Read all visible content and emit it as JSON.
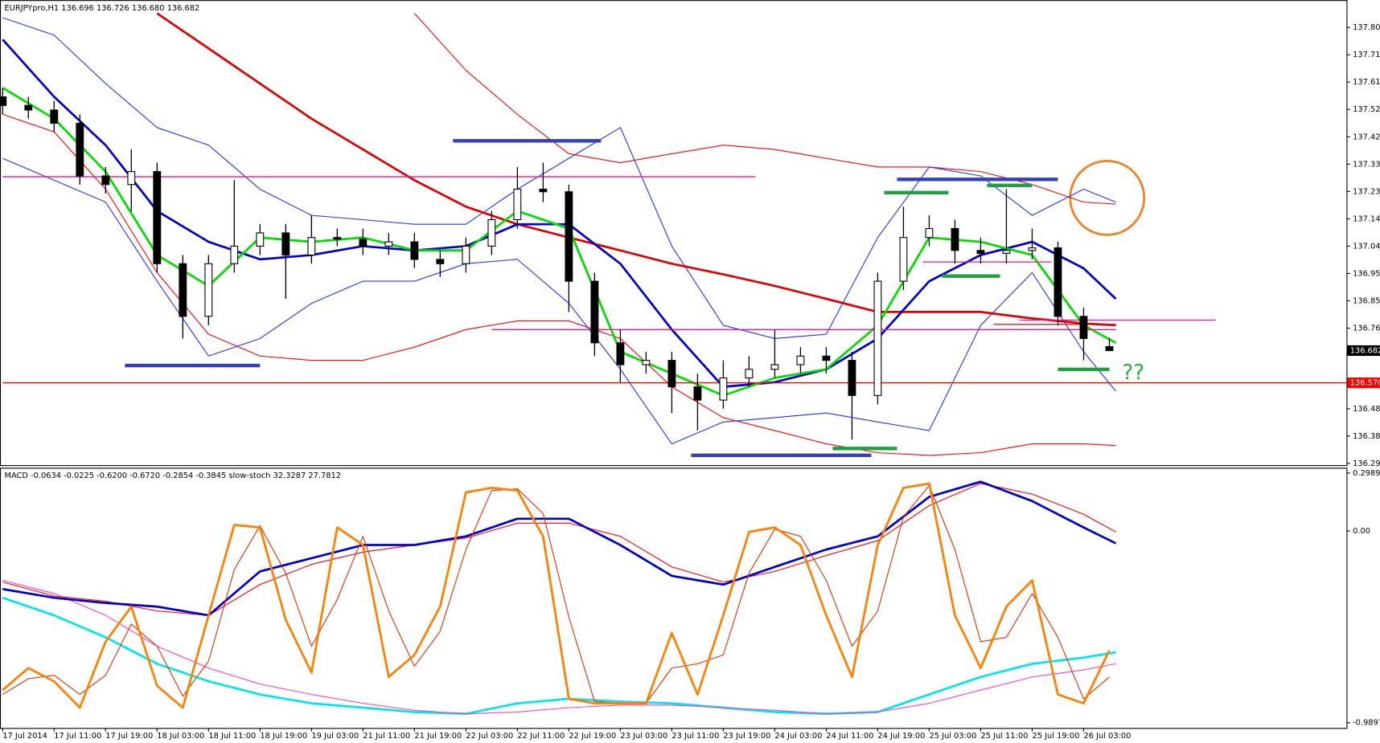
{
  "chart_data": [
    {
      "type": "candlestick",
      "legend_text": "EURJPYpro,H1  136.696 136.726 136.680 136.682",
      "annotation": "??",
      "xlim": [
        0,
        209
      ],
      "ylim": [
        136.284,
        137.9
      ],
      "yticks": [
        137.805,
        {
          "value": 137.71,
          "label": "137.710"
        },
        137.615,
        {
          "value": 137.52,
          "label": "137.520"
        },
        137.425,
        {
          "value": 137.33,
          "label": "137.330"
        },
        137.235,
        {
          "value": 137.14,
          "label": "137.140"
        },
        137.045,
        {
          "value": 136.95,
          "label": "136.950"
        },
        136.855,
        {
          "value": 136.76,
          "label": "136.760"
        },
        {
          "value": 136.48,
          "label": "136.480"
        },
        136.385,
        {
          "value": 136.29,
          "label": "136.290"
        }
      ],
      "price_labels": [
        {
          "value": 136.682,
          "label": "136.682",
          "color": "#000000"
        },
        {
          "value": 136.57,
          "label": "136.570",
          "color": "#ff0000"
        }
      ],
      "x": [
        0,
        4,
        8,
        12,
        16,
        20,
        24,
        28,
        32,
        36,
        40,
        44,
        48,
        52,
        56,
        60,
        64,
        68,
        72,
        76,
        80,
        84,
        88,
        92,
        96,
        100,
        104,
        108,
        112,
        116,
        120,
        124,
        128,
        132,
        136,
        140,
        144,
        148,
        152,
        156,
        160,
        164,
        168,
        172
      ],
      "open": [
        137.564,
        137.534,
        137.518,
        137.472,
        137.289,
        137.259,
        137.304,
        136.984,
        136.801,
        136.984,
        137.045,
        137.091,
        137.014,
        137.075,
        137.069,
        137.045,
        137.06,
        136.999,
        136.984,
        137.045,
        137.137,
        137.243,
        137.234,
        136.923,
        136.709,
        136.633,
        136.648,
        136.556,
        136.51,
        136.587,
        136.617,
        136.633,
        136.663,
        136.648,
        136.526,
        136.923,
        137.075,
        137.106,
        137.03,
        137.02,
        137.03,
        137.039,
        136.801,
        136.696
      ],
      "high": [
        137.595,
        137.564,
        137.549,
        137.503,
        137.32,
        137.381,
        137.335,
        137.014,
        137.014,
        137.274,
        137.121,
        137.121,
        137.152,
        137.106,
        137.106,
        137.091,
        137.091,
        137.03,
        137.075,
        137.167,
        137.32,
        137.335,
        137.259,
        136.953,
        136.755,
        136.678,
        136.678,
        136.602,
        136.648,
        136.663,
        136.755,
        136.694,
        136.694,
        136.678,
        136.953,
        137.182,
        137.152,
        137.137,
        137.075,
        137.243,
        137.106,
        137.06,
        136.831,
        136.726
      ],
      "low": [
        137.503,
        137.488,
        137.442,
        137.259,
        137.228,
        137.167,
        136.953,
        136.724,
        136.77,
        136.953,
        137.014,
        136.862,
        136.984,
        137.045,
        137.014,
        137.014,
        136.969,
        136.938,
        136.953,
        137.014,
        137.106,
        137.198,
        136.816,
        136.663,
        136.572,
        136.602,
        136.465,
        136.404,
        136.48,
        136.556,
        136.587,
        136.602,
        136.602,
        136.373,
        136.495,
        136.892,
        137.045,
        136.984,
        136.984,
        136.984,
        136.999,
        136.77,
        136.648,
        136.68
      ],
      "close": [
        137.534,
        137.518,
        137.472,
        137.289,
        137.259,
        137.304,
        136.984,
        136.801,
        136.984,
        137.045,
        137.091,
        137.014,
        137.075,
        137.069,
        137.045,
        137.06,
        136.999,
        136.984,
        137.045,
        137.137,
        137.243,
        137.234,
        136.923,
        136.709,
        136.633,
        136.648,
        136.556,
        136.51,
        136.587,
        136.617,
        136.633,
        136.663,
        136.648,
        136.526,
        136.923,
        137.075,
        137.106,
        137.03,
        137.02,
        137.03,
        137.039,
        136.801,
        136.724,
        136.682
      ],
      "indicator_x": [
        0,
        8,
        16,
        24,
        32,
        40,
        48,
        56,
        64,
        72,
        80,
        88,
        96,
        104,
        112,
        120,
        128,
        136,
        144,
        152,
        160,
        168,
        173
      ],
      "lines": [
        {
          "color": "#ff0000",
          "values": [
            null,
            null,
            null,
            null,
            null,
            null,
            null,
            null,
            137.854,
            137.656,
            137.503,
            137.366,
            137.335,
            137.366,
            137.396,
            137.381,
            137.35,
            137.32,
            137.32,
            137.304,
            137.259,
            137.198,
            137.191
          ]
        },
        {
          "color": "#ff0000",
          "values": [
            137.503,
            137.442,
            137.243,
            136.953,
            136.739,
            136.663,
            136.648,
            136.648,
            136.694,
            136.755,
            136.785,
            136.785,
            136.724,
            136.556,
            136.449,
            136.404,
            136.358,
            136.327,
            136.318,
            136.327,
            136.358,
            136.358,
            136.352
          ]
        },
        {
          "color": "#2030ff",
          "values": [
            137.839,
            137.778,
            137.61,
            137.457,
            137.396,
            137.243,
            137.152,
            137.137,
            137.121,
            137.121,
            137.243,
            137.35,
            137.457,
            137.045,
            136.77,
            136.724,
            136.739,
            137.075,
            137.32,
            137.289,
            137.152,
            137.243,
            137.198
          ]
        },
        {
          "color": "#2030ff",
          "values": [
            137.35,
            137.274,
            137.198,
            136.923,
            136.663,
            136.724,
            136.846,
            136.923,
            136.923,
            136.984,
            136.999,
            136.846,
            136.617,
            136.358,
            136.434,
            136.449,
            136.465,
            136.434,
            136.404,
            136.77,
            136.953,
            136.678,
            136.541
          ]
        },
        {
          "color": "#e00000",
          "values": [
            null,
            null,
            null,
            137.854,
            137.732,
            137.61,
            137.488,
            137.381,
            137.274,
            137.182,
            137.121,
            137.075,
            137.03,
            136.984,
            136.947,
            136.907,
            136.862,
            136.816,
            136.816,
            136.816,
            136.794,
            136.776,
            136.77
          ]
        },
        {
          "color": "#0000cc",
          "values": [
            137.763,
            137.564,
            137.396,
            137.167,
            137.06,
            136.999,
            137.014,
            137.045,
            137.03,
            137.045,
            137.121,
            137.121,
            136.984,
            136.755,
            136.556,
            136.572,
            136.617,
            136.724,
            136.923,
            137.014,
            137.06,
            136.968,
            136.862
          ]
        },
        {
          "color": "#00dd00",
          "values": [
            137.595,
            137.488,
            137.304,
            137.014,
            136.907,
            137.075,
            137.06,
            137.075,
            137.03,
            137.03,
            137.167,
            137.106,
            136.678,
            136.602,
            136.526,
            136.587,
            136.617,
            136.77,
            137.075,
            137.06,
            137.014,
            136.77,
            136.709
          ]
        }
      ],
      "levels": [
        {
          "price": 137.286,
          "from": 0,
          "to": 117,
          "color": "#f0148c"
        },
        {
          "price": 136.755,
          "from": 76,
          "to": 173,
          "color": "#f0148c"
        },
        {
          "price": 136.99,
          "from": 143,
          "to": 163,
          "color": "#f0148c"
        },
        {
          "price": 136.788,
          "from": 158,
          "to": 188.5,
          "color": "#f0148c"
        },
        {
          "price": 136.57,
          "from": 0,
          "to": 209,
          "color": "#ff0000"
        },
        {
          "price": 136.773,
          "from": 154,
          "to": 173,
          "color": "#e00000"
        },
        {
          "price": 136.63,
          "from": 19,
          "to": 40,
          "color": "#3040c0"
        },
        {
          "price": 137.411,
          "from": 70,
          "to": 93,
          "color": "#3040c0"
        },
        {
          "price": 137.277,
          "from": 139,
          "to": 164,
          "color": "#3040c0"
        },
        {
          "price": 136.318,
          "from": 107,
          "to": 135,
          "color": "#3040c0"
        },
        {
          "price": 137.231,
          "from": 137,
          "to": 147,
          "color": "#20a040"
        },
        {
          "price": 137.256,
          "from": 153,
          "to": 160,
          "color": "#20a040"
        },
        {
          "price": 136.941,
          "from": 146,
          "to": 155,
          "color": "#20a040"
        },
        {
          "price": 136.617,
          "from": 164,
          "to": 172,
          "color": "#20a040"
        },
        {
          "price": 136.342,
          "from": 129,
          "to": 139,
          "color": "#20a040"
        }
      ]
    },
    {
      "type": "line",
      "legend_text": "MACD -0.0634 -0.0225 -0.6200 -0.6720 -0.2854 -0.3845 slow-stoch 32.3287 27.7812",
      "xlim": [
        0,
        209
      ],
      "ylim": [
        -1.017,
        0.326
      ],
      "yticks": [
        0.2989,
        {
          "value": 0,
          "label": "0.00"
        },
        -0.9897
      ],
      "xticks": [
        {
          "value": 0,
          "label": "17 Jul 2014"
        },
        {
          "value": 8,
          "label": "17 Jul 11:00"
        },
        {
          "value": 16,
          "label": "17 Jul 19:00"
        },
        {
          "value": 24,
          "label": "18 Jul 03:00"
        },
        {
          "value": 32,
          "label": "18 Jul 11:00"
        },
        {
          "value": 40,
          "label": "18 Jul 19:00"
        },
        {
          "value": 48,
          "label": "19 Jul 03:00"
        },
        {
          "value": 56,
          "label": "21 Jul 11:00"
        },
        {
          "value": 64,
          "label": "21 Jul 19:00"
        },
        {
          "value": 72,
          "label": "22 Jul 03:00"
        },
        {
          "value": 80,
          "label": "22 Jul 11:00"
        },
        {
          "value": 88,
          "label": "22 Jul 19:00"
        },
        {
          "value": 96,
          "label": "23 Jul 03:00"
        },
        {
          "value": 104,
          "label": "23 Jul 11:00"
        },
        {
          "value": 112,
          "label": "23 Jul 19:00"
        },
        {
          "value": 120,
          "label": "24 Jul 03:00"
        },
        {
          "value": 128,
          "label": "24 Jul 11:00"
        },
        {
          "value": 136,
          "label": "24 Jul 19:00"
        },
        {
          "value": 144,
          "label": "25 Jul 03:00"
        },
        {
          "value": 152,
          "label": "25 Jul 11:00"
        },
        {
          "value": 160,
          "label": "25 Jul 19:00"
        },
        {
          "value": 168,
          "label": "26 Jul 03:00"
        }
      ],
      "indicator_x": [
        0,
        8,
        16,
        24,
        32,
        40,
        48,
        56,
        64,
        72,
        80,
        88,
        96,
        104,
        112,
        120,
        128,
        136,
        144,
        152,
        160,
        168,
        173
      ],
      "lines": [
        {
          "color": "#00e5ee",
          "values": [
            -0.345,
            -0.436,
            -0.549,
            -0.686,
            -0.776,
            -0.844,
            -0.89,
            -0.912,
            -0.935,
            -0.944,
            -0.89,
            -0.867,
            -0.881,
            -0.89,
            -0.912,
            -0.935,
            -0.944,
            -0.935,
            -0.844,
            -0.754,
            -0.686,
            -0.654,
            -0.627
          ]
        },
        {
          "color": "#ff40c0",
          "values": [
            -0.255,
            -0.323,
            -0.436,
            -0.595,
            -0.708,
            -0.79,
            -0.844,
            -0.89,
            -0.926,
            -0.944,
            -0.935,
            -0.912,
            -0.899,
            -0.899,
            -0.912,
            -0.926,
            -0.944,
            -0.935,
            -0.89,
            -0.822,
            -0.754,
            -0.717,
            -0.686
          ]
        },
        {
          "color": "#ff0000",
          "values": [
            -0.264,
            -0.336,
            -0.363,
            -0.413,
            -0.436,
            -0.277,
            -0.173,
            -0.109,
            -0.073,
            -0.037,
            0.04,
            0.04,
            -0.028,
            -0.186,
            -0.264,
            -0.209,
            -0.127,
            -0.05,
            0.131,
            0.245,
            0.19,
            0.086,
            -0.005
          ]
        },
        {
          "color": "#0000cc",
          "values": [
            -0.3,
            -0.345,
            -0.372,
            -0.391,
            -0.436,
            -0.209,
            -0.141,
            -0.073,
            -0.073,
            -0.028,
            0.063,
            0.063,
            -0.073,
            -0.232,
            -0.277,
            -0.186,
            -0.096,
            -0.028,
            0.176,
            0.254,
            0.154,
            0.018,
            -0.064
          ]
        }
      ],
      "stoch_x": [
        0,
        4,
        8,
        12,
        16,
        20,
        24,
        28,
        32,
        36,
        40,
        44,
        48,
        52,
        56,
        60,
        64,
        68,
        72,
        76,
        80,
        84,
        88,
        92,
        96,
        100,
        104,
        108,
        112,
        116,
        120,
        124,
        128,
        132,
        136,
        140,
        144,
        148,
        152,
        156,
        160,
        164,
        168,
        172
      ],
      "stoch_lines": [
        {
          "color": "#e03000",
          "values": [
            -0.844,
            -0.763,
            -0.745,
            -0.844,
            -0.745,
            -0.481,
            -0.595,
            -0.853,
            -0.672,
            -0.2,
            0.027,
            -0.218,
            -0.595,
            -0.354,
            -0.028,
            -0.413,
            -0.699,
            -0.518,
            -0.096,
            0.208,
            0.217,
            0.09,
            -0.445,
            -0.881,
            -0.89,
            -0.89,
            -0.708,
            -0.686,
            -0.64,
            -0.218,
            0.009,
            -0.028,
            -0.255,
            -0.595,
            -0.413,
            0.072,
            0.235,
            -0.096,
            -0.572,
            -0.549,
            -0.323,
            -0.549,
            -0.867,
            -0.754
          ]
        },
        {
          "color": "#ff7f00",
          "values": [
            -0.822,
            -0.708,
            -0.776,
            -0.912,
            -0.572,
            -0.391,
            -0.799,
            -0.912,
            -0.436,
            0.031,
            0.018,
            -0.459,
            -0.731,
            0.018,
            -0.073,
            -0.754,
            -0.64,
            -0.391,
            0.199,
            0.222,
            0.208,
            -0.028,
            -0.867,
            -0.89,
            -0.89,
            -0.89,
            -0.527,
            -0.844,
            -0.436,
            -0.005,
            0.018,
            -0.073,
            -0.436,
            -0.754,
            -0.073,
            0.222,
            0.245,
            -0.436,
            -0.708,
            -0.391,
            -0.255,
            -0.844,
            -0.89,
            -0.617
          ]
        }
      ]
    }
  ]
}
